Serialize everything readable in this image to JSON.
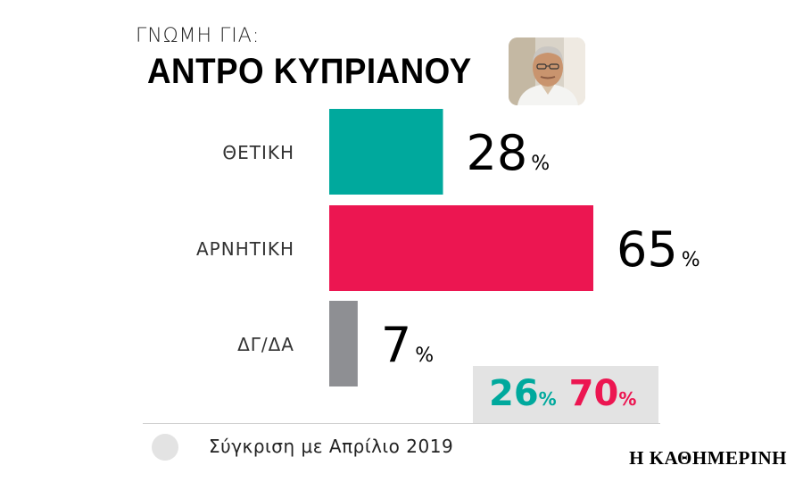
{
  "header": {
    "subtitle": "ΓΝΩΜΗ ΓΙΑ:",
    "title": "ΑΝΤΡΟ ΚΥΠΡΙΑΝΟΥ"
  },
  "chart_data": {
    "type": "bar",
    "orientation": "horizontal",
    "title": "ΑΝΤΡΟ ΚΥΠΡΙΑΝΟΥ",
    "subtitle": "ΓΝΩΜΗ ΓΙΑ:",
    "categories": [
      "ΘΕΤΙΚΗ",
      "ΑΡΝΗΤΙΚΗ",
      "ΔΓ/ΔΑ"
    ],
    "values": [
      28,
      65,
      7
    ],
    "value_suffix": "%",
    "colors": [
      "#00a99d",
      "#ec1651",
      "#8e8f93"
    ],
    "xlim": [
      0,
      65
    ],
    "grid": false,
    "comparison": {
      "label": "Σύγκριση με Απρίλιο 2019",
      "values": [
        26,
        70
      ],
      "colors": [
        "#00a99d",
        "#ec1651"
      ]
    }
  },
  "comparison_display": {
    "positive": "26",
    "negative": "70",
    "suffix": "%"
  },
  "legend": {
    "label": "Σύγκριση με Απρίλιο 2019"
  },
  "footer": {
    "brand": "Η ΚΑΘΗΜΕΡΙΝΗ"
  }
}
